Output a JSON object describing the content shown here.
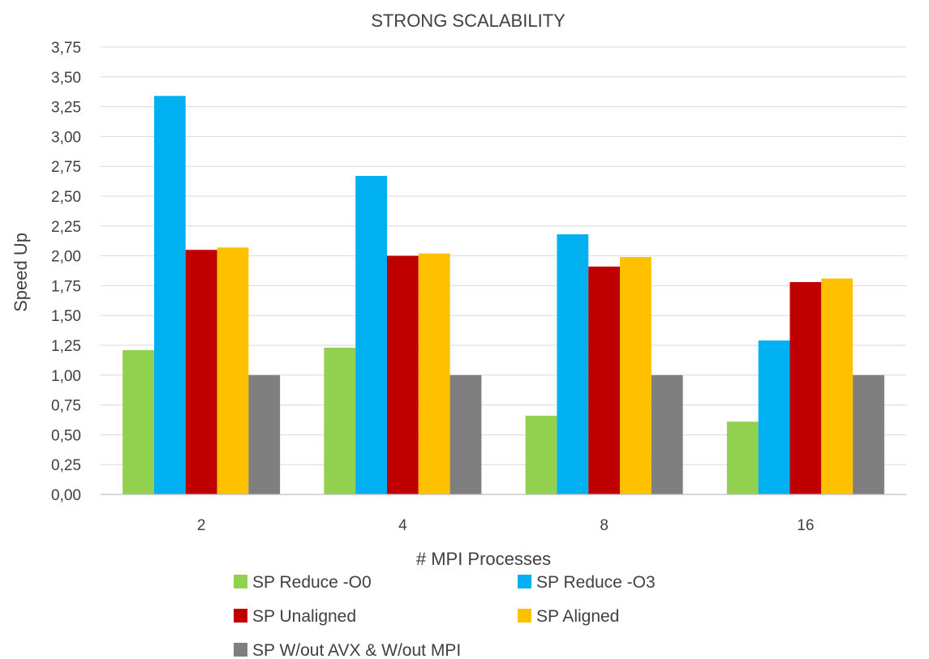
{
  "chart_data": {
    "type": "bar",
    "title": "STRONG SCALABILITY",
    "xlabel": "# MPI Processes",
    "ylabel": "Speed Up",
    "categories": [
      "2",
      "4",
      "8",
      "16"
    ],
    "yticks": [
      "0,00",
      "0,25",
      "0,50",
      "0,75",
      "1,00",
      "1,25",
      "1,50",
      "1,75",
      "2,00",
      "2,25",
      "2,50",
      "2,75",
      "3,00",
      "3,25",
      "3,50",
      "3,75"
    ],
    "ylim": [
      0,
      3.75
    ],
    "ytick_step": 0.25,
    "grid": true,
    "legend_position": "bottom",
    "series": [
      {
        "name": "SP Reduce -O0",
        "color": "#92d050",
        "values": [
          1.21,
          1.23,
          0.66,
          0.61
        ]
      },
      {
        "name": "SP Reduce -O3",
        "color": "#00b0f0",
        "values": [
          3.34,
          2.67,
          2.18,
          1.29
        ]
      },
      {
        "name": "SP Unaligned",
        "color": "#c00000",
        "values": [
          2.05,
          2.0,
          1.91,
          1.78
        ]
      },
      {
        "name": "SP Aligned",
        "color": "#ffc000",
        "values": [
          2.07,
          2.02,
          1.99,
          1.81
        ]
      },
      {
        "name": "SP W/out AVX & W/out MPI",
        "color": "#7f7f7f",
        "values": [
          1.0,
          1.0,
          1.0,
          1.0
        ]
      }
    ]
  }
}
